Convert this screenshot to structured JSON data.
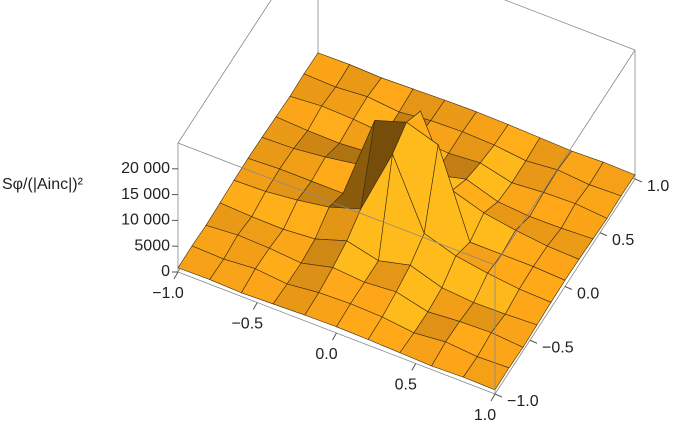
{
  "chart_data": {
    "type": "surface3d",
    "zlabel": "Sφ/(|Ainc|)²",
    "color": "#f7a21b",
    "x": [
      -1,
      -0.8,
      -0.6,
      -0.4,
      -0.2,
      0,
      0.2,
      0.4,
      0.6,
      0.8,
      1
    ],
    "y": [
      -1,
      -0.8,
      -0.6,
      -0.4,
      -0.2,
      0,
      0.2,
      0.4,
      0.6,
      0.8,
      1
    ],
    "z": [
      [
        800,
        900,
        700,
        900,
        1100,
        1200,
        1100,
        900,
        700,
        900,
        800
      ],
      [
        900,
        700,
        1200,
        600,
        1300,
        1500,
        1300,
        600,
        1200,
        700,
        900
      ],
      [
        700,
        1200,
        1000,
        500,
        2000,
        1500,
        2000,
        500,
        1000,
        1200,
        700
      ],
      [
        900,
        600,
        500,
        1000,
        3000,
        1500,
        3000,
        1000,
        500,
        600,
        900
      ],
      [
        1100,
        1300,
        2000,
        3000,
        5000,
        18000,
        5000,
        3000,
        2000,
        1300,
        1100
      ],
      [
        1200,
        1500,
        1500,
        1500,
        18000,
        20000,
        18000,
        1500,
        1500,
        1500,
        1200
      ],
      [
        1100,
        1300,
        2000,
        3000,
        5000,
        18000,
        5000,
        3000,
        2000,
        1300,
        1100
      ],
      [
        900,
        600,
        500,
        1000,
        3000,
        1500,
        3000,
        1000,
        500,
        600,
        900
      ],
      [
        700,
        1200,
        1000,
        500,
        2000,
        1500,
        2000,
        500,
        1000,
        1200,
        700
      ],
      [
        900,
        700,
        1200,
        600,
        1300,
        1500,
        1300,
        600,
        1200,
        700,
        900
      ],
      [
        800,
        900,
        700,
        900,
        1100,
        1200,
        1100,
        900,
        700,
        900,
        800
      ]
    ],
    "xlim": [
      -1,
      1
    ],
    "ylim": [
      -1,
      1
    ],
    "zlim": [
      0,
      25000
    ],
    "xticks": [
      {
        "value": -1,
        "label": "−1.0"
      },
      {
        "value": -0.5,
        "label": "−0.5"
      },
      {
        "value": 0,
        "label": "0.0"
      },
      {
        "value": 0.5,
        "label": "0.5"
      },
      {
        "value": 1,
        "label": "1.0"
      }
    ],
    "yticks": [
      {
        "value": -1,
        "label": "−1.0"
      },
      {
        "value": -0.5,
        "label": "−0.5"
      },
      {
        "value": 0,
        "label": "0.0"
      },
      {
        "value": 0.5,
        "label": "0.5"
      },
      {
        "value": 1,
        "label": "1.0"
      }
    ],
    "zticks": [
      0,
      5000,
      {
        "value": 10000,
        "label": "10 000"
      },
      {
        "value": 15000,
        "label": "15 000"
      },
      {
        "value": 20000,
        "label": "20 000"
      }
    ]
  }
}
